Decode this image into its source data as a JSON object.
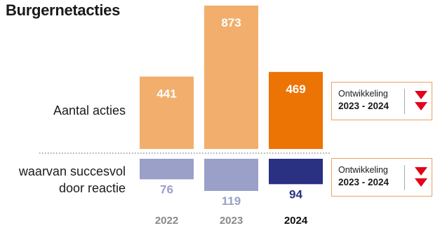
{
  "chart_data": {
    "type": "bar",
    "title": "Burgernetacties",
    "categories": [
      "2022",
      "2023",
      "2024"
    ],
    "highlight_category": "2024",
    "series": [
      {
        "name": "Aantal acties",
        "values": [
          441,
          873,
          469
        ]
      },
      {
        "name": "waarvan succesvol door reactie",
        "values": [
          76,
          119,
          94
        ]
      }
    ],
    "row_labels": {
      "top": "Aantal acties",
      "bottom_line1": "waarvan succesvol",
      "bottom_line2": "door reactie"
    },
    "developments": [
      {
        "label": "Ontwikkeling",
        "period": "2023 - 2024",
        "direction": "down",
        "arrows": 2
      },
      {
        "label": "Ontwikkeling",
        "period": "2023 - 2024",
        "direction": "down",
        "arrows": 2
      }
    ],
    "colors": {
      "top_base": "#f2ae6c",
      "top_highlight": "#ec7404",
      "bottom_base": "#9aa0c8",
      "bottom_highlight": "#2a3082",
      "bottom_label_base": "#9aa0c8",
      "bottom_label_highlight": "#2a3082",
      "arrow": "#e3001b",
      "box_border": "#f0a060",
      "year_label": "#888888"
    }
  }
}
